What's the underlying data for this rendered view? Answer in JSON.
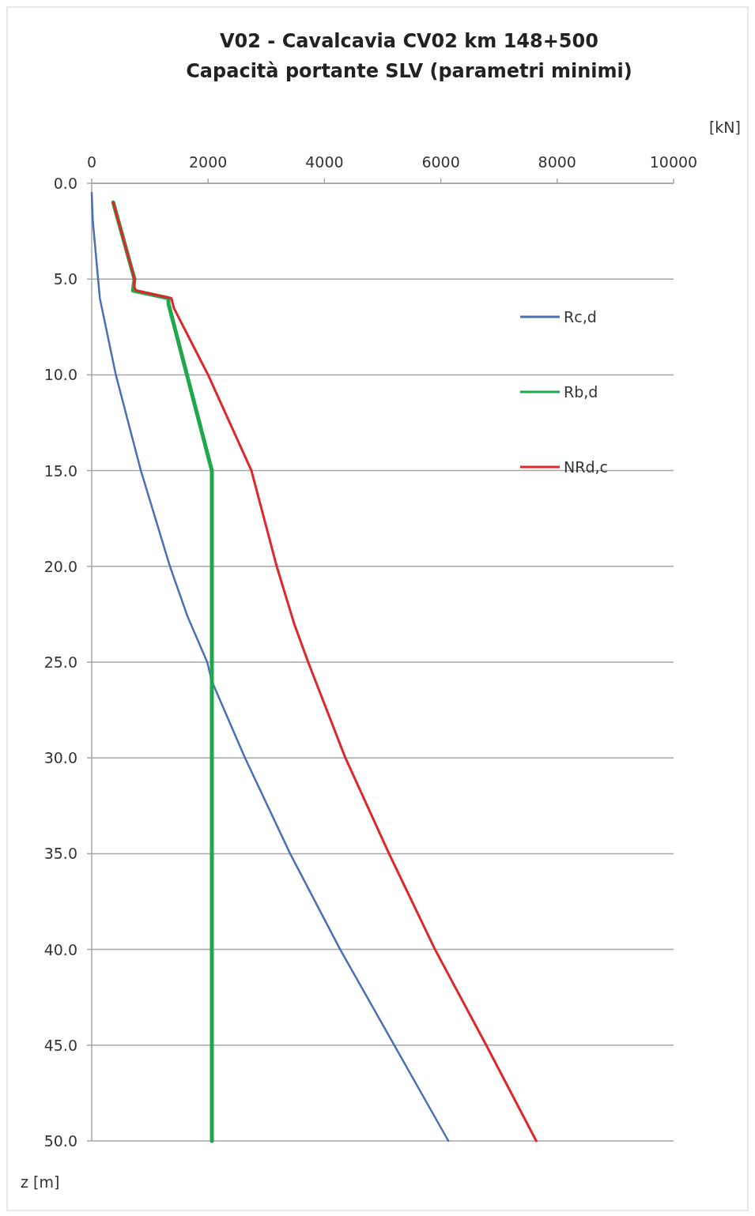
{
  "chart_data": {
    "type": "line",
    "title": "V02 - Cavalcavia CV02 km 148+500",
    "subtitle": "Capacità portante SLV (parametri minimi)",
    "xlabel": "[kN]",
    "ylabel": "z [m]",
    "xlim": [
      0,
      10000
    ],
    "xticks": [
      0,
      2000,
      4000,
      6000,
      8000,
      10000
    ],
    "ylim": [
      50,
      0
    ],
    "yticks": [
      {
        "value": 0,
        "label": "0.0"
      },
      {
        "value": 5,
        "label": "5.0"
      },
      {
        "value": 10,
        "label": "10.0"
      },
      {
        "value": 15,
        "label": "15.0"
      },
      {
        "value": 20,
        "label": "20.0"
      },
      {
        "value": 25,
        "label": "25.0"
      },
      {
        "value": 30,
        "label": "30.0"
      },
      {
        "value": 35,
        "label": "35.0"
      },
      {
        "value": 40,
        "label": "40.0"
      },
      {
        "value": 45,
        "label": "45.0"
      },
      {
        "value": 50,
        "label": "50.0"
      }
    ],
    "grid": "y",
    "legend": "right",
    "line_style": "solid",
    "series": [
      {
        "name": "Rc,d",
        "color": "#4a6fb5",
        "x": [
          0,
          20,
          110,
          140,
          415,
          845,
          1345,
          1645,
          1985,
          2065,
          2635,
          3410,
          4270,
          5200,
          6130
        ],
        "values": [
          0.5,
          2,
          5,
          6,
          10,
          15,
          20,
          22.6,
          25,
          26,
          30,
          35,
          40,
          45,
          50
        ]
      },
      {
        "name": "Rb,d",
        "color": "#1ea84a",
        "x": [
          370,
          735,
          710,
          1320,
          1320,
          2065,
          2065
        ],
        "values": [
          1,
          5,
          5.6,
          6,
          6.3,
          15,
          50
        ]
      },
      {
        "name": "NRd,c",
        "color": "#e0262a",
        "x": [
          370,
          735,
          730,
          760,
          1370,
          1410,
          2000,
          2745,
          3180,
          3480,
          3720,
          4360,
          5110,
          5900,
          6780,
          7640
        ],
        "values": [
          1,
          5,
          5.4,
          5.6,
          6,
          6.5,
          10,
          15,
          20,
          23,
          25,
          30,
          35,
          40,
          45,
          50
        ]
      }
    ]
  }
}
